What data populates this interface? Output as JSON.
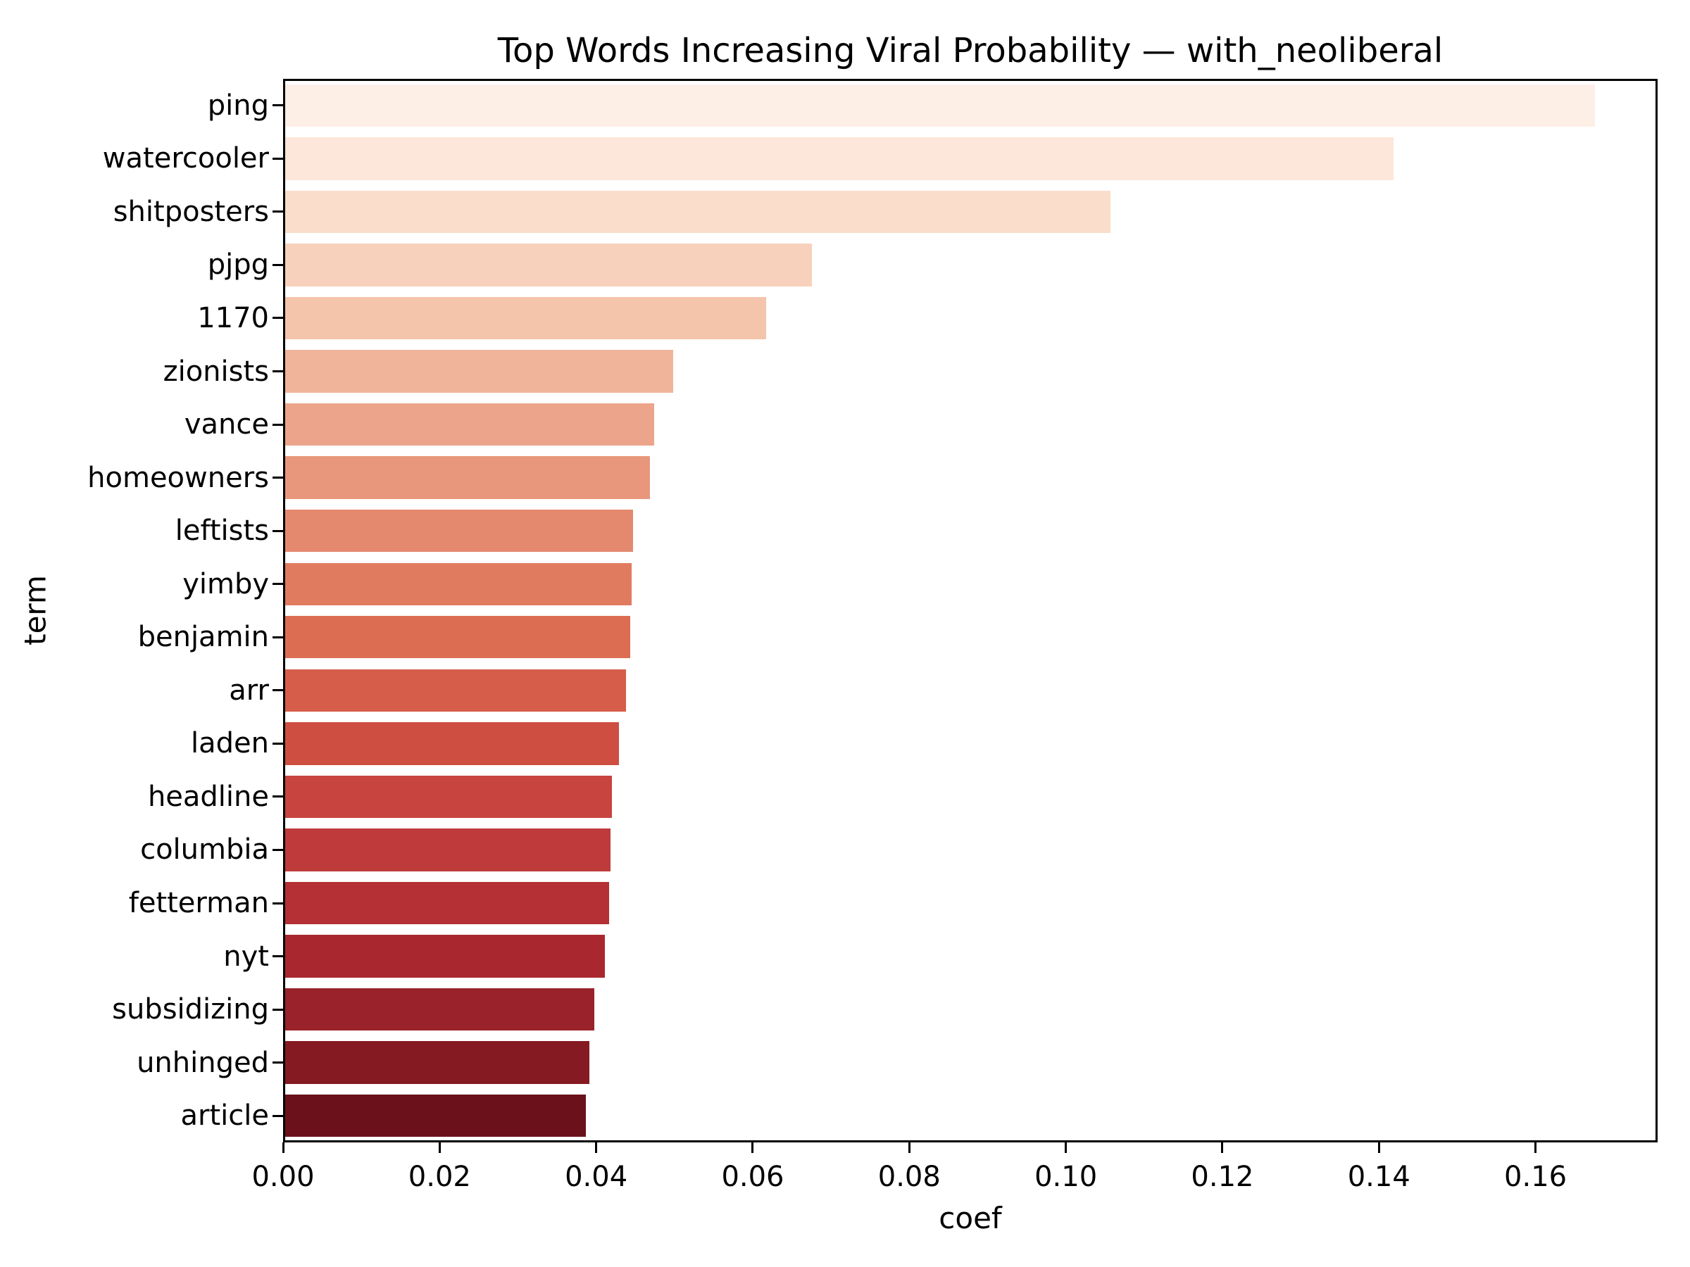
{
  "chart_data": {
    "type": "bar",
    "orientation": "horizontal",
    "title": "Top Words Increasing Viral Probability — with_neoliberal",
    "xlabel": "coef",
    "ylabel": "term",
    "categories": [
      "ping",
      "watercooler",
      "shitposters",
      "pjpg",
      "1170",
      "zionists",
      "vance",
      "homeowners",
      "leftists",
      "yimby",
      "benjamin",
      "arr",
      "laden",
      "headline",
      "columbia",
      "fetterman",
      "nyt",
      "subsidizing",
      "unhinged",
      "article"
    ],
    "values": [
      0.1673,
      0.1416,
      0.1054,
      0.0673,
      0.0614,
      0.0496,
      0.0471,
      0.0466,
      0.0444,
      0.0443,
      0.0441,
      0.0435,
      0.0426,
      0.0417,
      0.0416,
      0.0414,
      0.0408,
      0.0395,
      0.0389,
      0.0384
    ],
    "bar_colors": [
      "#fdeee6",
      "#fce7da",
      "#faddcb",
      "#f7d1bb",
      "#f4c4ab",
      "#f0b49b",
      "#eca58b",
      "#e8977c",
      "#e4896e",
      "#e07b60",
      "#dc6d53",
      "#d65d4a",
      "#cf4e42",
      "#c8443e",
      "#bf3a3a",
      "#b43034",
      "#a9282f",
      "#9a222b",
      "#851a23",
      "#6b111c"
    ],
    "colormap": "Reds",
    "xlim": [
      0,
      0.1756
    ],
    "xticks": [
      0.0,
      0.02,
      0.04,
      0.06,
      0.08,
      0.1,
      0.12,
      0.14,
      0.16
    ],
    "xtick_labels": [
      "0.00",
      "0.02",
      "0.04",
      "0.06",
      "0.08",
      "0.10",
      "0.12",
      "0.14",
      "0.16"
    ],
    "grid": false,
    "legend": null,
    "bar_band_fraction": 0.8
  },
  "colors": {
    "background": "#ffffff",
    "axis": "#000000",
    "text": "#000000"
  }
}
